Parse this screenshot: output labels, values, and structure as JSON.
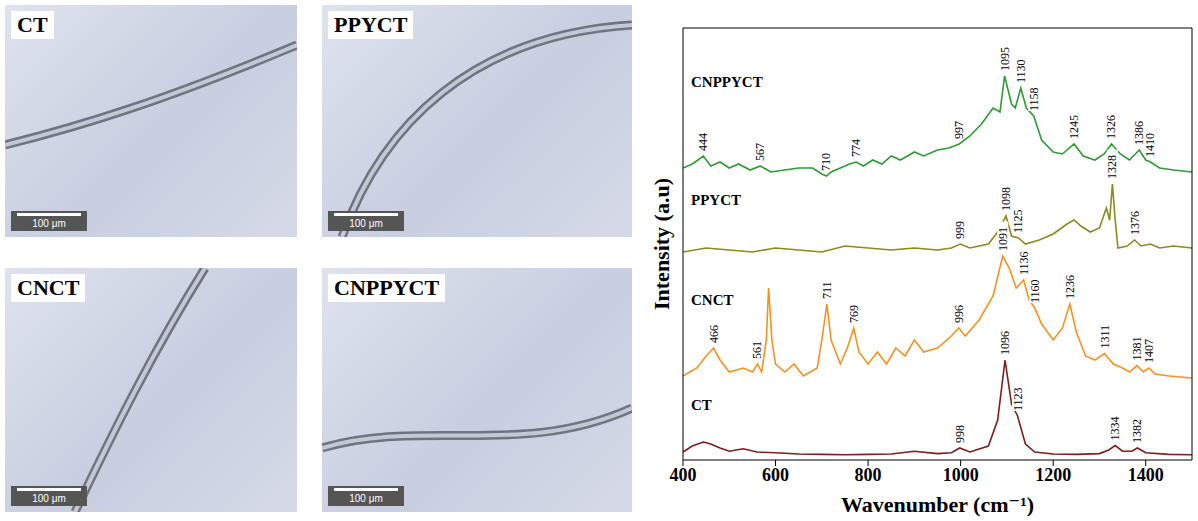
{
  "panels": [
    {
      "label": "CT",
      "scale_bar": "100 μm"
    },
    {
      "label": "PPYCT",
      "scale_bar": "100 μm"
    },
    {
      "label": "CNCT",
      "scale_bar": "100 μm"
    },
    {
      "label": "CNPPYCT",
      "scale_bar": "100 μm"
    }
  ],
  "chart_data": {
    "type": "line",
    "x_label": "Wavenumber (cm⁻¹)",
    "y_label": "Intensity (a.u)",
    "xlim": [
      400,
      1500
    ],
    "xticks": [
      400,
      600,
      800,
      1000,
      1200,
      1400
    ],
    "ylim": [
      0,
      108
    ],
    "tick_labels": "x",
    "grid": false,
    "series": [
      {
        "name": "CNPPYCT",
        "color": "#2e9b33",
        "x": [
          400,
          420,
          444,
          460,
          480,
          500,
          520,
          545,
          567,
          590,
          620,
          650,
          680,
          700,
          710,
          720,
          740,
          760,
          774,
          790,
          810,
          830,
          850,
          870,
          900,
          920,
          950,
          975,
          997,
          1020,
          1045,
          1070,
          1085,
          1095,
          1110,
          1118,
          1130,
          1142,
          1158,
          1175,
          1200,
          1220,
          1245,
          1265,
          1290,
          1310,
          1326,
          1345,
          1365,
          1386,
          1400,
          1410,
          1430,
          1460,
          1500
        ],
        "values": [
          73,
          74,
          76,
          73.5,
          74.5,
          73,
          74,
          72.5,
          73.5,
          72,
          72.5,
          73,
          73,
          71.5,
          71,
          72,
          73,
          74,
          74.5,
          73.5,
          75,
          74,
          76,
          75,
          77,
          76,
          77.5,
          78,
          79,
          81,
          84,
          88,
          87,
          96,
          89,
          88,
          93,
          88,
          86,
          80,
          77,
          76.5,
          79,
          76,
          75,
          76.5,
          79,
          76.5,
          75,
          77.5,
          75,
          74.5,
          73,
          72.5,
          72
        ],
        "peaks": [
          444,
          567,
          710,
          774,
          997,
          1095,
          1130,
          1158,
          1245,
          1326,
          1386,
          1410
        ]
      },
      {
        "name": "PPYCT",
        "color": "#8c8a1c",
        "x": [
          400,
          450,
          500,
          550,
          600,
          650,
          700,
          750,
          800,
          850,
          900,
          950,
          980,
          999,
          1020,
          1060,
          1080,
          1098,
          1110,
          1125,
          1140,
          1170,
          1200,
          1230,
          1245,
          1260,
          1280,
          1300,
          1315,
          1322,
          1328,
          1334,
          1340,
          1360,
          1376,
          1390,
          1410,
          1430,
          1460,
          1500
        ],
        "values": [
          52,
          53,
          52.5,
          52,
          53,
          52.5,
          52,
          53.5,
          53,
          52.5,
          53,
          52.5,
          53,
          54,
          53,
          54,
          57,
          61,
          56,
          55.5,
          54,
          55,
          56.5,
          59,
          60,
          58.5,
          57,
          58,
          63,
          60,
          69,
          60,
          53,
          53.5,
          55,
          53.5,
          54,
          53,
          53.5,
          53
        ],
        "peaks": [
          999,
          1098,
          1125,
          1328,
          1376
        ]
      },
      {
        "name": "CNCT",
        "color": "#f5921e",
        "x": [
          400,
          430,
          450,
          466,
          480,
          500,
          530,
          550,
          561,
          570,
          580,
          585,
          592,
          600,
          620,
          640,
          660,
          690,
          700,
          711,
          720,
          740,
          755,
          769,
          780,
          800,
          820,
          840,
          860,
          880,
          900,
          920,
          950,
          980,
          996,
          1010,
          1040,
          1070,
          1091,
          1105,
          1120,
          1136,
          1148,
          1160,
          1175,
          1200,
          1220,
          1236,
          1250,
          1270,
          1290,
          1311,
          1330,
          1350,
          1365,
          1381,
          1395,
          1407,
          1420,
          1450,
          1500
        ],
        "values": [
          21,
          23,
          26,
          28,
          25,
          22,
          23,
          22,
          24,
          22,
          30,
          43,
          30,
          24,
          22,
          24,
          21,
          23,
          30,
          39,
          30,
          24,
          28,
          33,
          27,
          24,
          27,
          24,
          28,
          26,
          30,
          27,
          28,
          31,
          33,
          31,
          35,
          41,
          51,
          48,
          43,
          45,
          40,
          38,
          34,
          30,
          33,
          39,
          32,
          26,
          25,
          26.6,
          24,
          23,
          22,
          23.6,
          22,
          23,
          21.5,
          21,
          20.5
        ],
        "peaks": [
          466,
          561,
          711,
          769,
          996,
          1091,
          1136,
          1160,
          1236,
          1311,
          1381,
          1407
        ]
      },
      {
        "name": "CT",
        "color": "#7f1d1d",
        "x": [
          400,
          420,
          444,
          460,
          480,
          500,
          530,
          560,
          600,
          650,
          700,
          750,
          800,
          850,
          900,
          950,
          980,
          998,
          1020,
          1060,
          1080,
          1096,
          1110,
          1123,
          1140,
          1160,
          1200,
          1250,
          1300,
          1320,
          1334,
          1350,
          1370,
          1382,
          1400,
          1450,
          1500
        ],
        "values": [
          2,
          3.5,
          4.5,
          4,
          3,
          2.2,
          2.8,
          2,
          1.8,
          1.5,
          1.4,
          1.3,
          1.4,
          1.5,
          2.2,
          1.6,
          1.8,
          3,
          2,
          3.5,
          10,
          25,
          14,
          11,
          4,
          2,
          1.5,
          1.4,
          1.6,
          2.5,
          3.6,
          2.2,
          2.2,
          3,
          1.8,
          1.4,
          1.3
        ],
        "peaks": [
          998,
          1096,
          1123,
          1334,
          1382
        ]
      }
    ]
  }
}
